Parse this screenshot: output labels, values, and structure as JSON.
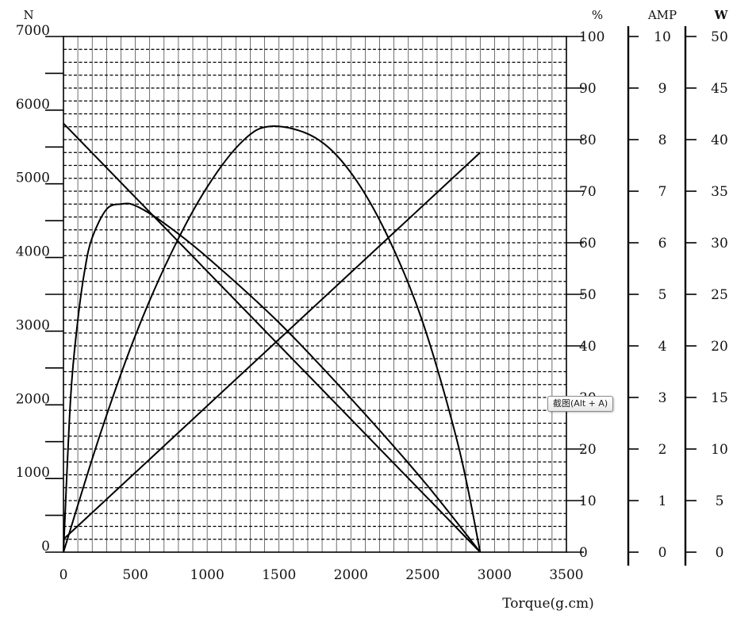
{
  "chart_data": {
    "type": "line",
    "xlabel": "Torque(g.cm)",
    "xlim": [
      0,
      3500
    ],
    "x_ticks": [
      "0",
      "500",
      "1000",
      "1500",
      "2000",
      "2500",
      "3000",
      "3500"
    ],
    "axes": [
      {
        "id": "speed",
        "unit": "N",
        "lim": [
          0,
          7000
        ],
        "ticks": [
          "0",
          "1000",
          "2000",
          "3000",
          "4000",
          "5000",
          "6000",
          "7000"
        ]
      },
      {
        "id": "efficiency",
        "unit": "%",
        "lim": [
          0,
          100
        ],
        "ticks": [
          "0",
          "10",
          "20",
          "30",
          "40",
          "50",
          "60",
          "70",
          "80",
          "90",
          "100"
        ]
      },
      {
        "id": "current",
        "unit": "AMP",
        "lim": [
          0,
          10
        ],
        "ticks": [
          "0",
          "1",
          "2",
          "3",
          "4",
          "5",
          "6",
          "7",
          "8",
          "9",
          "10"
        ]
      },
      {
        "id": "power",
        "unit": "W",
        "lim": [
          0,
          50
        ],
        "ticks": [
          "0",
          "5",
          "10",
          "15",
          "20",
          "25",
          "30",
          "35",
          "40",
          "45",
          "50"
        ]
      }
    ],
    "grid": true,
    "series": [
      {
        "axis": "speed",
        "x": [
          0,
          2900
        ],
        "y": [
          5820,
          0
        ]
      },
      {
        "axis": "current",
        "x": [
          0,
          2900
        ],
        "y": [
          0.25,
          7.75
        ]
      },
      {
        "axis": "power",
        "x": [
          0,
          250,
          500,
          750,
          1000,
          1250,
          1450,
          1750,
          2000,
          2250,
          2500,
          2750,
          2900
        ],
        "y": [
          0,
          11.2,
          21.0,
          29.0,
          35.4,
          39.9,
          41.3,
          40.2,
          36.8,
          30.8,
          22.3,
          10.2,
          0
        ]
      },
      {
        "axis": "efficiency",
        "x": [
          0,
          50,
          100,
          150,
          200,
          300,
          400,
          500,
          700,
          1000,
          1500,
          2000,
          2500,
          2900
        ],
        "y": [
          0,
          30,
          45,
          55,
          61,
          66.5,
          67.5,
          67.2,
          63.8,
          57.2,
          44.5,
          29.8,
          14.0,
          0
        ]
      }
    ]
  },
  "tooltip": {
    "text": "截图(Alt + A)"
  }
}
